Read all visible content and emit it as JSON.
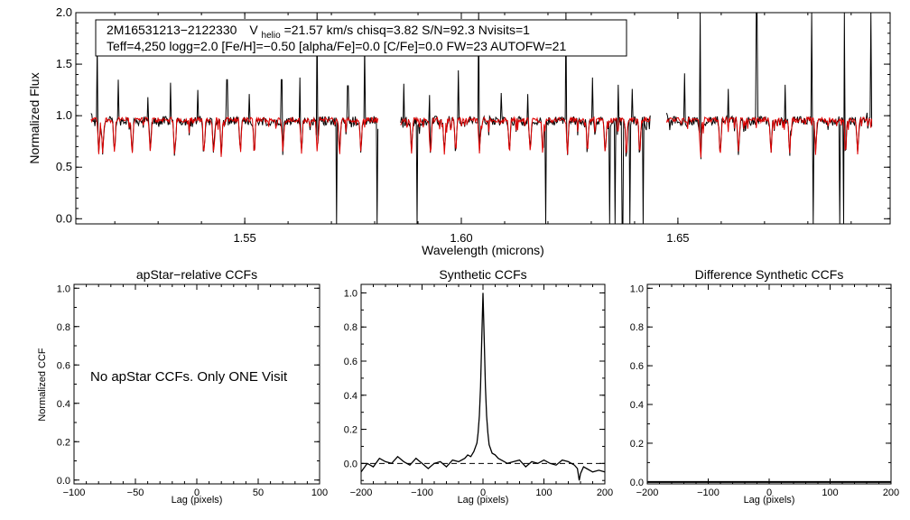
{
  "chart_data": [
    {
      "id": "spectrum",
      "type": "line",
      "title": "",
      "xlabel": "Wavelength (microns)",
      "ylabel": "Normalized Flux",
      "xlim": [
        1.511,
        1.699
      ],
      "ylim": [
        -0.05,
        2.0
      ],
      "x_ticks": [
        1.55,
        1.6,
        1.65
      ],
      "x_tick_labels": [
        "1.55",
        "1.60",
        "1.65"
      ],
      "y_ticks": [
        0.0,
        0.5,
        1.0,
        1.5,
        2.0
      ],
      "y_tick_labels": [
        "0.0",
        "0.5",
        "1.0",
        "1.5",
        "2.0"
      ],
      "info_box": {
        "line1_star": "2M16531213−2122330",
        "line1_vhelio_prefix": "V",
        "line1_vhelio_sub": "helio",
        "line1_rest": "=21.57 km/s  chisq=3.82  S/N=92.3  Nvisits=1",
        "line2": "Teff=4,250 logg=2.0 [Fe/H]=−0.50 [alpha/Fe]=0.0 [C/Fe]=0.0 FW=23 AUTOFW=21"
      },
      "series": [
        {
          "name": "observed spectrum",
          "color": "#000000"
        },
        {
          "name": "best-fit synthetic spectrum",
          "color": "#e00000"
        }
      ],
      "chip_ranges": [
        [
          1.5145,
          1.5808
        ],
        [
          1.586,
          1.6437
        ],
        [
          1.6474,
          1.6948
        ]
      ],
      "continuum_level": 0.95,
      "absorption_lines": [
        1.5163,
        1.5172,
        1.5199,
        1.524,
        1.5282,
        1.5338,
        1.5406,
        1.5428,
        1.5446,
        1.549,
        1.5522,
        1.5588,
        1.5631,
        1.5667,
        1.5719,
        1.5768,
        1.5885,
        1.5929,
        1.5961,
        1.5987,
        1.6042,
        1.6111,
        1.6159,
        1.6188,
        1.6245,
        1.6291,
        1.6332,
        1.6381,
        1.6412,
        1.6552,
        1.6598,
        1.664,
        1.6715,
        1.6758,
        1.6818,
        1.6887,
        1.6915
      ],
      "sky_spikes_up": [
        [
          1.516,
          1.7
        ],
        [
          1.5208,
          1.35
        ],
        [
          1.5277,
          1.18
        ],
        [
          1.5328,
          1.32
        ],
        [
          1.5392,
          1.25
        ],
        [
          1.5459,
          1.35
        ],
        [
          1.551,
          1.21
        ],
        [
          1.5585,
          1.35
        ],
        [
          1.5628,
          1.37
        ],
        [
          1.5667,
          2.1
        ],
        [
          1.5738,
          1.29
        ],
        [
          1.5777,
          1.69
        ],
        [
          1.5867,
          1.31
        ],
        [
          1.5926,
          1.2
        ],
        [
          1.5993,
          1.44
        ],
        [
          1.604,
          2.1
        ],
        [
          1.6092,
          1.22
        ],
        [
          1.6154,
          1.21
        ],
        [
          1.6241,
          2.1
        ],
        [
          1.6303,
          1.37
        ],
        [
          1.6362,
          1.3
        ],
        [
          1.6395,
          1.26
        ],
        [
          1.6515,
          1.41
        ],
        [
          1.6552,
          2.1
        ],
        [
          1.6616,
          1.26
        ],
        [
          1.6682,
          2.1
        ],
        [
          1.6747,
          1.3
        ],
        [
          1.6809,
          2.1
        ],
        [
          1.6884,
          2.1
        ],
        [
          1.6945,
          2.1
        ]
      ],
      "sky_spikes_down": [
        1.5712,
        1.5805,
        1.5898,
        1.6195,
        1.6343,
        1.6355,
        1.6372,
        1.6389,
        1.642,
        1.6812,
        1.6873,
        1.6882
      ]
    },
    {
      "id": "apstar-ccf",
      "type": "line",
      "title": "apStar−relative CCFs",
      "xlabel": "Lag (pixels)",
      "ylabel": "Normalized CCF",
      "xlim": [
        -100,
        100
      ],
      "ylim": [
        -0.02,
        1.02
      ],
      "x_ticks": [
        -100,
        -50,
        0,
        50,
        100
      ],
      "x_tick_labels": [
        "−100",
        "−50",
        "0",
        "50",
        "100"
      ],
      "y_ticks": [
        0.0,
        0.2,
        0.4,
        0.6,
        0.8,
        1.0
      ],
      "y_tick_labels": [
        "0.0",
        "0.2",
        "0.4",
        "0.6",
        "0.8",
        "1.0"
      ],
      "message": "No apStar CCFs.  Only ONE Visit",
      "series": []
    },
    {
      "id": "synthetic-ccf",
      "type": "line",
      "title": "Synthetic CCFs",
      "xlabel": "Lag (pixels)",
      "ylabel": "",
      "xlim": [
        -200,
        200
      ],
      "ylim": [
        -0.12,
        1.05
      ],
      "x_ticks": [
        -200,
        -100,
        0,
        100,
        200
      ],
      "x_tick_labels": [
        "−200",
        "−100",
        "0",
        "100",
        "200"
      ],
      "y_ticks": [
        0.0,
        0.2,
        0.4,
        0.6,
        0.8,
        1.0
      ],
      "y_tick_labels": [
        "0.0",
        "0.2",
        "0.4",
        "0.6",
        "0.8",
        "1.0"
      ],
      "reference_line": {
        "y": 0.0,
        "style": "dashed"
      },
      "series": [
        {
          "name": "synthetic CCF",
          "x": [
            -200,
            -190,
            -180,
            -170,
            -160,
            -150,
            -140,
            -130,
            -120,
            -110,
            -100,
            -90,
            -80,
            -70,
            -60,
            -50,
            -40,
            -30,
            -25,
            -20,
            -15,
            -10,
            -8,
            -6,
            -4,
            -2,
            0,
            2,
            4,
            6,
            8,
            10,
            15,
            20,
            25,
            30,
            40,
            50,
            60,
            70,
            80,
            90,
            100,
            110,
            120,
            130,
            140,
            150,
            155,
            158,
            160,
            165,
            170,
            180,
            190,
            200
          ],
          "y": [
            -0.05,
            0.0,
            -0.02,
            0.03,
            0.01,
            0.0,
            0.04,
            0.01,
            -0.01,
            0.03,
            0.0,
            -0.03,
            0.0,
            0.01,
            -0.02,
            0.02,
            0.01,
            0.03,
            0.05,
            0.04,
            0.07,
            0.12,
            0.18,
            0.28,
            0.45,
            0.72,
            1.0,
            0.72,
            0.45,
            0.28,
            0.18,
            0.11,
            0.06,
            0.05,
            0.03,
            0.02,
            0.0,
            0.01,
            0.02,
            -0.02,
            0.01,
            0.0,
            0.02,
            0.0,
            -0.01,
            0.02,
            0.01,
            -0.01,
            -0.03,
            -0.1,
            -0.06,
            -0.02,
            -0.03,
            -0.05,
            -0.04,
            -0.05
          ]
        }
      ]
    },
    {
      "id": "difference-ccf",
      "type": "line",
      "title": "Difference Synthetic CCFs",
      "xlabel": "Lag (pixels)",
      "ylabel": "",
      "xlim": [
        -200,
        200
      ],
      "ylim": [
        -0.01,
        1.02
      ],
      "x_ticks": [
        -200,
        -100,
        0,
        100,
        200
      ],
      "x_tick_labels": [
        "−200",
        "−100",
        "0",
        "100",
        "200"
      ],
      "y_ticks": [
        0.0,
        0.2,
        0.4,
        0.6,
        0.8,
        1.0
      ],
      "y_tick_labels": [
        "0.0",
        "0.2",
        "0.4",
        "0.6",
        "0.8",
        "1.0"
      ],
      "series": [
        {
          "name": "difference CCF",
          "x": [
            -200,
            200
          ],
          "y": [
            0.0,
            0.0
          ]
        }
      ]
    }
  ]
}
